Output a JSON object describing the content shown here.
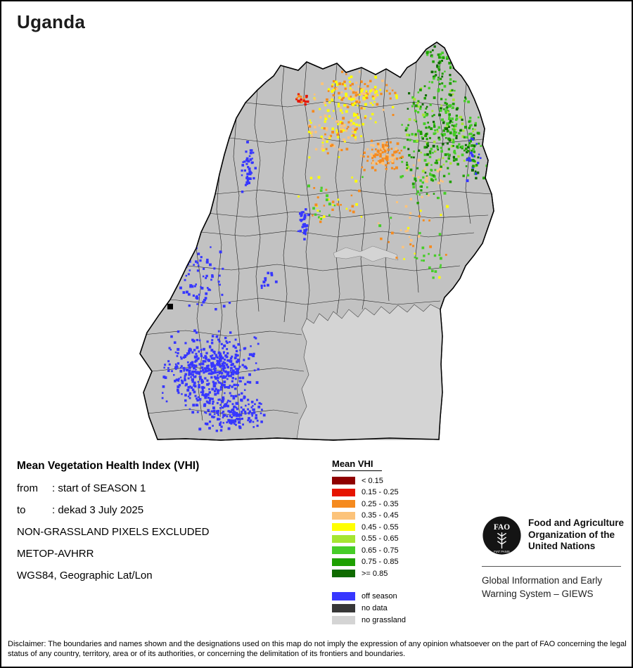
{
  "title": "Uganda",
  "info": {
    "heading": "Mean Vegetation Health Index (VHI)",
    "from": {
      "label": "from",
      "value": ": start of SEASON 1"
    },
    "to": {
      "label": "to",
      "value": ": dekad 3 July 2025"
    },
    "notes": [
      "NON-GRASSLAND PIXELS EXCLUDED",
      "METOP-AVHRR",
      "WGS84, Geographic Lat/Lon"
    ]
  },
  "legend": {
    "title": "Mean VHI",
    "classes": [
      {
        "label": "< 0.15",
        "color": "#8f0000"
      },
      {
        "label": "0.15 - 0.25",
        "color": "#e61400"
      },
      {
        "label": "0.25 - 0.35",
        "color": "#f58a1e"
      },
      {
        "label": "0.35 - 0.45",
        "color": "#fcc37a"
      },
      {
        "label": "0.45 - 0.55",
        "color": "#ffff00"
      },
      {
        "label": "0.55 - 0.65",
        "color": "#a5e632"
      },
      {
        "label": "0.65 - 0.75",
        "color": "#46cd28"
      },
      {
        "label": "0.75 - 0.85",
        "color": "#1ea000"
      },
      {
        "label": ">= 0.85",
        "color": "#0f6b00"
      }
    ],
    "extras": [
      {
        "label": "off season",
        "color": "#3737ff"
      },
      {
        "label": "no data",
        "color": "#373737"
      },
      {
        "label": "no grassland",
        "color": "#d4d4d4"
      }
    ]
  },
  "org": {
    "logo_text": "FAO",
    "logo_motto": "FIAT PANIS",
    "name_lines": [
      "Food and Agriculture",
      "Organization of the",
      "United Nations"
    ],
    "system_lines": [
      "Global Information and Early",
      "Warning System – GIEWS"
    ]
  },
  "disclaimer": "Disclaimer: The boundaries and names shown and the designations used on this map do not imply the expression of any opinion whatsoever on the part of FAO concerning the legal status of any country, territory, area or of its authorities, or concerning the delimitation of its frontiers and boundaries."
}
